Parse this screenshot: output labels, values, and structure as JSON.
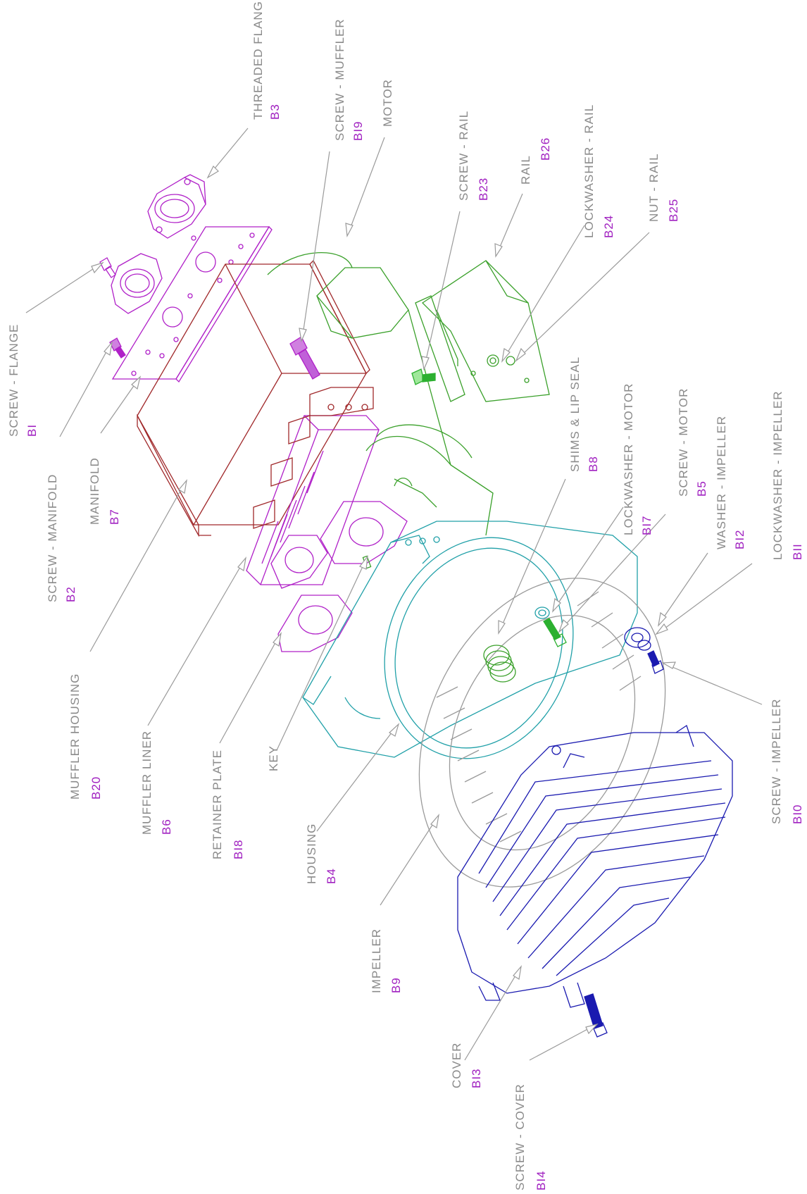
{
  "colors": {
    "label_name": "#8a8a8a",
    "label_code": "#a020c0",
    "leader": "#9a9a9a",
    "muffler_parts": "#b020c8",
    "muffler_housing": "#a0282a",
    "motor": "#3aa02a",
    "housing": "#20a0a8",
    "cover": "#1a1ab0",
    "screw_motor": "#2cb030"
  },
  "parts": [
    {
      "id": "threaded-flange",
      "name": "THREADED FLANGE",
      "code": "B3"
    },
    {
      "id": "screw-muffler",
      "name": "SCREW - MUFFLER",
      "code": "BI9"
    },
    {
      "id": "motor",
      "name": "MOTOR",
      "code": ""
    },
    {
      "id": "screw-rail",
      "name": "SCREW - RAIL",
      "code": "B23"
    },
    {
      "id": "rail",
      "name": "RAIL",
      "code": "B26"
    },
    {
      "id": "lockwasher-rail",
      "name": "LOCKWASHER - RAIL",
      "code": "B24"
    },
    {
      "id": "nut-rail",
      "name": "NUT - RAIL",
      "code": "B25"
    },
    {
      "id": "screw-flange",
      "name": "SCREW - FLANGE",
      "code": "BI"
    },
    {
      "id": "screw-manifold",
      "name": "SCREW - MANIFOLD",
      "code": "B2"
    },
    {
      "id": "manifold",
      "name": "MANIFOLD",
      "code": "B7"
    },
    {
      "id": "shims-lip-seal",
      "name": "SHIMS & LIP SEAL",
      "code": "B8"
    },
    {
      "id": "lockwasher-motor",
      "name": "LOCKWASHER - MOTOR",
      "code": "BI7"
    },
    {
      "id": "screw-motor",
      "name": "SCREW - MOTOR",
      "code": "B5"
    },
    {
      "id": "washer-impeller",
      "name": "WASHER - IMPELLER",
      "code": "BI2"
    },
    {
      "id": "lockwasher-impeller",
      "name": "LOCKWASHER - IMPELLER",
      "code": "BII"
    },
    {
      "id": "muffler-housing",
      "name": "MUFFLER HOUSING",
      "code": "B20"
    },
    {
      "id": "muffler-liner",
      "name": "MUFFLER LINER",
      "code": "B6"
    },
    {
      "id": "retainer-plate",
      "name": "RETAINER PLATE",
      "code": "BI8"
    },
    {
      "id": "key",
      "name": "KEY",
      "code": ""
    },
    {
      "id": "housing",
      "name": "HOUSING",
      "code": "B4"
    },
    {
      "id": "impeller",
      "name": "IMPELLER",
      "code": "B9"
    },
    {
      "id": "screw-impeller",
      "name": "SCREW - IMPELLER",
      "code": "BI0"
    },
    {
      "id": "cover",
      "name": "COVER",
      "code": "BI3"
    },
    {
      "id": "screw-cover",
      "name": "SCREW - COVER",
      "code": "BI4"
    }
  ]
}
